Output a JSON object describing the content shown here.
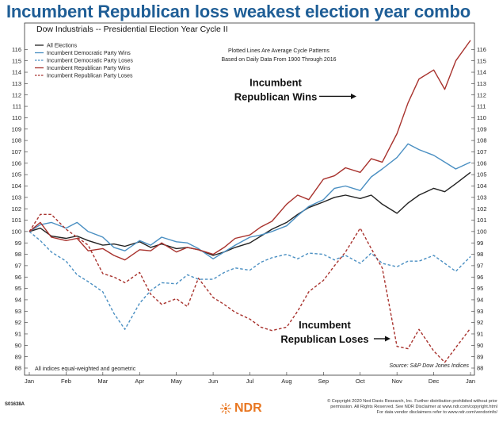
{
  "headline": "Incumbent Republican loss weakest election year combo",
  "chart_data": {
    "type": "line",
    "title": "Dow Industrials -- Presidential Election Year Cycle II",
    "note_lines": [
      "Plotted Lines Are Average Cycle Patterns",
      "Based on Daily Data From 1900 Through 2016"
    ],
    "footnote": "All indices equal-weighted and geometric",
    "source": "Source: S&P Dow Jones Indices",
    "x_ticks": [
      "Jan",
      "Feb",
      "Mar",
      "Apr",
      "May",
      "Jun",
      "Jul",
      "Aug",
      "Sep",
      "Oct",
      "Nov",
      "Dec",
      "Jan"
    ],
    "ylim": [
      88,
      117
    ],
    "y_ticks": [
      88,
      89,
      90,
      91,
      92,
      93,
      94,
      95,
      96,
      97,
      98,
      99,
      100,
      101,
      102,
      103,
      104,
      105,
      106,
      107,
      108,
      109,
      110,
      111,
      112,
      113,
      114,
      115,
      116
    ],
    "grid": false,
    "legend_position": "top-left",
    "series": [
      {
        "name": "All Elections",
        "color": "#222222",
        "dash": "solid",
        "x": [
          0,
          0.3,
          0.6,
          1,
          1.3,
          1.6,
          2,
          2.3,
          2.6,
          3,
          3.3,
          3.6,
          4,
          4.3,
          4.6,
          5,
          5.3,
          5.6,
          6,
          6.3,
          6.6,
          7,
          7.3,
          7.6,
          8,
          8.3,
          8.6,
          9,
          9.3,
          9.6,
          10,
          10.3,
          10.6,
          11,
          11.3,
          11.6,
          12
        ],
        "y": [
          100,
          100.3,
          99.6,
          99.4,
          99.6,
          99.2,
          98.8,
          98.9,
          98.7,
          99.1,
          98.6,
          98.9,
          98.5,
          98.6,
          98.4,
          97.9,
          98.2,
          98.6,
          99,
          99.6,
          100.2,
          100.8,
          101.5,
          102.1,
          102.6,
          103,
          103.2,
          102.9,
          103.2,
          102.4,
          101.6,
          102.5,
          103.2,
          103.8,
          103.5,
          104.2,
          105.2
        ]
      },
      {
        "name": "Incumbent Democratic Party Wins",
        "color": "#4a8fc2",
        "dash": "solid",
        "x": [
          0,
          0.3,
          0.6,
          1,
          1.3,
          1.6,
          2,
          2.3,
          2.6,
          3,
          3.3,
          3.6,
          4,
          4.3,
          4.6,
          5,
          5.3,
          5.6,
          6,
          6.3,
          6.6,
          7,
          7.3,
          7.6,
          8,
          8.3,
          8.6,
          9,
          9.3,
          9.6,
          10,
          10.3,
          10.6,
          11,
          11.3,
          11.6,
          12
        ],
        "y": [
          100,
          100.6,
          100.8,
          100.3,
          100.8,
          100,
          99.5,
          98.6,
          98.3,
          99.2,
          98.8,
          99.5,
          99.1,
          99,
          98.5,
          97.6,
          98.2,
          98.8,
          99.5,
          99.7,
          100,
          100.5,
          101.4,
          102.2,
          102.8,
          103.8,
          104,
          103.6,
          104.8,
          105.5,
          106.5,
          107.7,
          107.2,
          106.7,
          106.1,
          105.5,
          106.1
        ]
      },
      {
        "name": "Incumbent Democratic Party Loses",
        "color": "#4a8fc2",
        "dash": "dashed",
        "x": [
          0,
          0.3,
          0.6,
          1,
          1.3,
          1.6,
          2,
          2.3,
          2.6,
          3,
          3.3,
          3.6,
          4,
          4.3,
          4.6,
          5,
          5.3,
          5.6,
          6,
          6.3,
          6.6,
          7,
          7.3,
          7.6,
          8,
          8.3,
          8.6,
          9,
          9.3,
          9.6,
          10,
          10.3,
          10.6,
          11,
          11.3,
          11.6,
          12
        ],
        "y": [
          100,
          99.2,
          98.2,
          97.4,
          96.2,
          95.6,
          94.7,
          92.8,
          91.4,
          93.7,
          94.8,
          95.5,
          95.4,
          96.2,
          95.8,
          95.8,
          96.4,
          96.8,
          96.6,
          97.3,
          97.7,
          98,
          97.6,
          98.1,
          98,
          97.5,
          97.9,
          97.2,
          98.1,
          97.2,
          96.9,
          97.4,
          97.4,
          97.9,
          97.2,
          96.5,
          97.8
        ]
      },
      {
        "name": "Incumbent Republican Party Wins",
        "color": "#a8322d",
        "dash": "solid",
        "x": [
          0,
          0.3,
          0.6,
          1,
          1.3,
          1.6,
          2,
          2.3,
          2.6,
          3,
          3.3,
          3.6,
          4,
          4.3,
          4.6,
          5,
          5.3,
          5.6,
          6,
          6.3,
          6.6,
          7,
          7.3,
          7.6,
          8,
          8.3,
          8.6,
          9,
          9.3,
          9.6,
          10,
          10.3,
          10.6,
          11,
          11.3,
          11.6,
          12
        ],
        "y": [
          100,
          100.8,
          99.5,
          99.2,
          99.4,
          98.3,
          98.5,
          97.9,
          97.5,
          98.4,
          98.3,
          99,
          98.2,
          98.6,
          98.4,
          98,
          98.6,
          99.4,
          99.7,
          100.4,
          100.9,
          102.4,
          103.2,
          102.8,
          104.6,
          104.9,
          105.6,
          105.2,
          106.4,
          106.1,
          108.6,
          111.3,
          113.4,
          114.2,
          112.5,
          115,
          116.8
        ]
      },
      {
        "name": "Incumbent Republican Party Loses",
        "color": "#a8322d",
        "dash": "dashed",
        "x": [
          0,
          0.3,
          0.6,
          1,
          1.3,
          1.6,
          2,
          2.3,
          2.6,
          3,
          3.3,
          3.6,
          4,
          4.3,
          4.6,
          5,
          5.3,
          5.6,
          6,
          6.3,
          6.6,
          7,
          7.3,
          7.6,
          8,
          8.3,
          8.6,
          9,
          9.3,
          9.6,
          10,
          10.3,
          10.6,
          11,
          11.3,
          11.6,
          12
        ],
        "y": [
          100,
          101.5,
          101.5,
          100.2,
          99.5,
          98.8,
          96.3,
          96,
          95.5,
          96.4,
          94.5,
          93.6,
          94.1,
          93.4,
          95.9,
          94.2,
          93.6,
          92.9,
          92.3,
          91.6,
          91.3,
          91.6,
          93,
          94.7,
          95.7,
          97,
          98.2,
          100.3,
          98.5,
          96.8,
          89.9,
          89.7,
          91.4,
          89.5,
          88.5,
          89.8,
          91.5
        ]
      }
    ],
    "annotations": [
      {
        "text_lines": [
          "Incumbent",
          "Republican Wins"
        ],
        "x": 7.95,
        "y": 111.6
      },
      {
        "text_lines": [
          "Incumbent",
          "Republican Loses"
        ],
        "x": 9.5,
        "y": 90.3
      }
    ]
  },
  "footer": {
    "code": "S01638A",
    "brand": "NDR",
    "copyright_lines": [
      "© Copyright 2020 Ned Davis Research, Inc. Further distribution prohibited without prior",
      "permission. All Rights Reserved. See NDR Disclaimer at www.ndr.com/copyright.html",
      "For data vendor disclaimers refer to www.ndr.com/vendorinfo/"
    ]
  }
}
